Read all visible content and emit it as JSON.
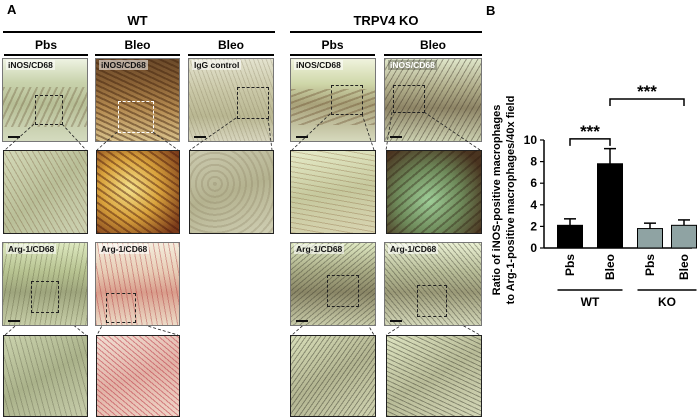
{
  "panelA": {
    "letter": "A",
    "groups": [
      {
        "title": "WT",
        "columns": [
          "Pbs",
          "Bleo",
          "Bleo"
        ]
      },
      {
        "title": "TRPV4 KO",
        "columns": [
          "Pbs",
          "Bleo"
        ]
      }
    ],
    "tile_labels": {
      "wt_pbs_inos": "iNOS/CD68",
      "wt_bleo_inos": "iNOS/CD68",
      "wt_bleo_igg": "IgG control",
      "ko_pbs_inos": "iNOS/CD68",
      "ko_bleo_inos": "iNOS/CD68",
      "wt_pbs_arg": "Arg-1/CD68",
      "wt_bleo_arg": "Arg-1/CD68",
      "ko_pbs_arg": "Arg-1/CD68",
      "ko_bleo_arg": "Arg-1/CD68"
    }
  },
  "panelB": {
    "letter": "B",
    "chart_data": {
      "type": "bar",
      "categories": [
        "Pbs",
        "Bleo",
        "Pbs",
        "Bleo"
      ],
      "groups": [
        {
          "label": "WT",
          "categories": [
            "Pbs",
            "Bleo"
          ]
        },
        {
          "label": "KO",
          "categories": [
            "Pbs",
            "Bleo"
          ]
        }
      ],
      "values": [
        2.1,
        7.8,
        1.8,
        2.1
      ],
      "errors": [
        0.6,
        1.4,
        0.5,
        0.5
      ],
      "bar_colors": [
        "#000000",
        "#000000",
        "#8fa3a3",
        "#8fa3a3"
      ],
      "ylabel_line1": "Ratio of iNOS-positive macrophages",
      "ylabel_line2": "to Arg-1-positive macrophages/40x field",
      "ylim": [
        0,
        10
      ],
      "yticks": [
        0,
        2,
        4,
        6,
        8,
        10
      ],
      "significance": [
        {
          "from": 0,
          "to": 1,
          "label": "***"
        },
        {
          "from": 1,
          "to": 3,
          "label": "***"
        }
      ]
    }
  }
}
